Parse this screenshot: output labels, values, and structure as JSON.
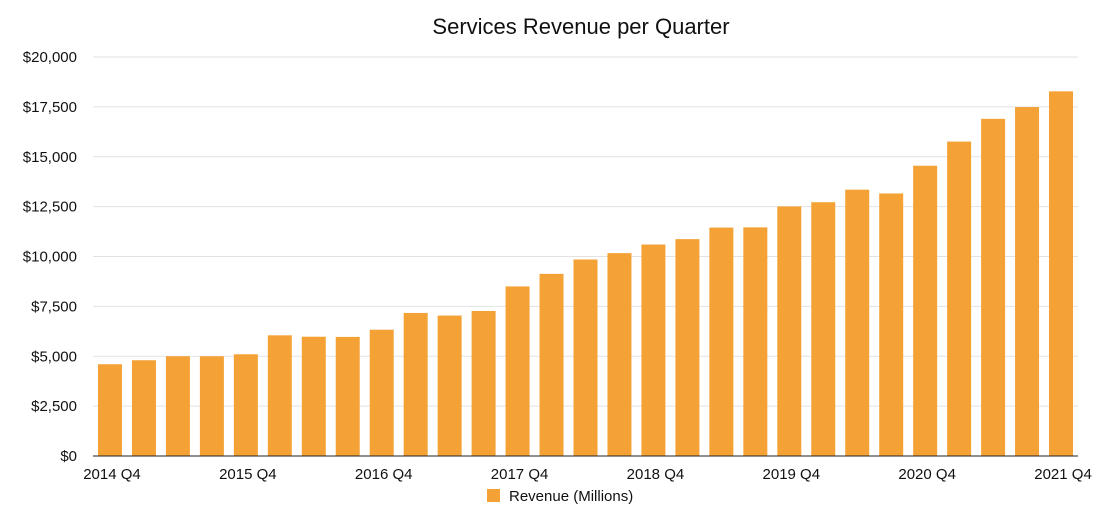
{
  "chart_data": {
    "type": "bar",
    "title": "Services Revenue per Quarter",
    "xlabel": "",
    "ylabel": "",
    "ylim": [
      0,
      20000
    ],
    "y_ticks": [
      "$0",
      "$2,500",
      "$5,000",
      "$7,500",
      "$10,000",
      "$12,500",
      "$15,000",
      "$17,500",
      "$20,000"
    ],
    "y_tick_values": [
      0,
      2500,
      5000,
      7500,
      10000,
      12500,
      15000,
      17500,
      20000
    ],
    "categories": [
      "2014 Q4",
      "2015 Q1",
      "2015 Q2",
      "2015 Q3",
      "2015 Q4",
      "2016 Q1",
      "2016 Q2",
      "2016 Q3",
      "2016 Q4",
      "2017 Q1",
      "2017 Q2",
      "2017 Q3",
      "2017 Q4",
      "2018 Q1",
      "2018 Q2",
      "2018 Q3",
      "2018 Q4",
      "2019 Q1",
      "2019 Q2",
      "2019 Q3",
      "2019 Q4",
      "2020 Q1",
      "2020 Q2",
      "2020 Q3",
      "2020 Q4",
      "2021 Q1",
      "2021 Q2",
      "2021 Q3",
      "2021 Q4"
    ],
    "x_tick_labels": [
      {
        "index": 0,
        "label": "2014 Q4"
      },
      {
        "index": 4,
        "label": "2015 Q4"
      },
      {
        "index": 8,
        "label": "2016 Q4"
      },
      {
        "index": 12,
        "label": "2017 Q4"
      },
      {
        "index": 16,
        "label": "2018 Q4"
      },
      {
        "index": 20,
        "label": "2019 Q4"
      },
      {
        "index": 24,
        "label": "2020 Q4"
      },
      {
        "index": 28,
        "label": "2021 Q4"
      }
    ],
    "series": [
      {
        "name": "Revenue (Millions)",
        "color": "#F4A236",
        "values": [
          4600,
          4800,
          5000,
          5000,
          5100,
          6050,
          5980,
          5970,
          6330,
          7170,
          7040,
          7270,
          8500,
          9130,
          9850,
          10170,
          10600,
          10870,
          11450,
          11460,
          12510,
          12720,
          13350,
          13160,
          14550,
          15760,
          16900,
          17490,
          18280
        ]
      }
    ],
    "grid": true,
    "legend": "bottom-center"
  }
}
